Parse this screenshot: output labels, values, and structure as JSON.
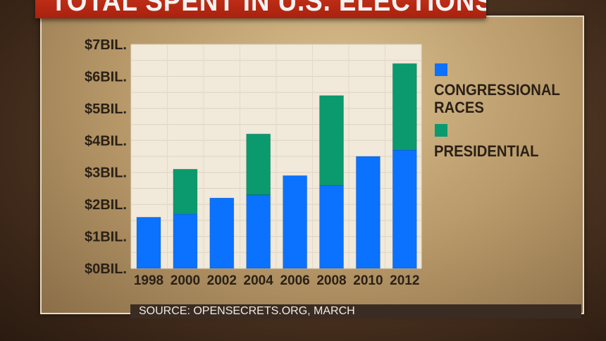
{
  "title": "TOTAL SPENT IN U.S. ELECTIONS",
  "source": "SOURCE: OPENSECRETS.ORG, MARCH",
  "colors": {
    "congressional": "#0a72ff",
    "presidential": "#0a9a6e",
    "plot_bg": "#f1e9da"
  },
  "chart_data": {
    "type": "bar",
    "stacked": true,
    "title": "TOTAL SPENT IN U.S. ELECTIONS",
    "categories": [
      "1998",
      "2000",
      "2002",
      "2004",
      "2006",
      "2008",
      "2010",
      "2012"
    ],
    "series": [
      {
        "name": "CONGRESSIONAL RACES",
        "values": [
          1.6,
          1.7,
          2.2,
          2.3,
          2.9,
          2.6,
          3.5,
          3.7
        ]
      },
      {
        "name": "PRESIDENTIAL",
        "values": [
          0,
          1.4,
          0,
          1.9,
          0,
          2.8,
          0,
          2.7
        ]
      }
    ],
    "ylim": [
      0,
      7
    ],
    "yticks": [
      "$0BIL.",
      "$1BIL.",
      "$2BIL.",
      "$3BIL.",
      "$4BIL.",
      "$5BIL.",
      "$6BIL.",
      "$7BIL."
    ],
    "grid": true,
    "legend": {
      "position": "right",
      "entries": [
        "CONGRESSIONAL",
        "RACES",
        "PRESIDENTIAL"
      ]
    }
  }
}
